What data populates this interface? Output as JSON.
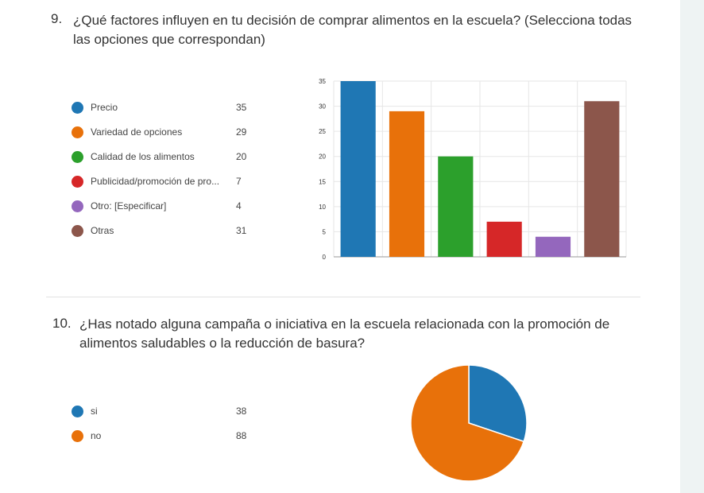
{
  "q9": {
    "number": "9.",
    "title": "¿Qué factores influyen en tu decisión de comprar alimentos en la escuela? (Selecciona todas las opciones que correspondan)",
    "legend": [
      {
        "label": "Precio",
        "count": "35",
        "color": "#1f77b4"
      },
      {
        "label": "Variedad de opciones",
        "count": "29",
        "color": "#e8710a"
      },
      {
        "label": "Calidad de los alimentos",
        "count": "20",
        "color": "#2ca02c"
      },
      {
        "label": "Publicidad/promoción de pro...",
        "count": "7",
        "color": "#d62728"
      },
      {
        "label": "Otro: [Especificar]",
        "count": "4",
        "color": "#9467bd"
      },
      {
        "label": "Otras",
        "count": "31",
        "color": "#8c564b"
      }
    ]
  },
  "q10": {
    "number": "10.",
    "title": "¿Has notado alguna campaña o iniciativa en la escuela relacionada con la promoción de alimentos saludables o la reducción de basura?",
    "legend": [
      {
        "label": "si",
        "count": "38",
        "color": "#1f77b4"
      },
      {
        "label": "no",
        "count": "88",
        "color": "#e8710a"
      }
    ]
  },
  "chart_data": [
    {
      "type": "bar",
      "categories": [
        "Precio",
        "Variedad de opciones",
        "Calidad de los alimentos",
        "Publicidad/promoción de pro...",
        "Otro: [Especificar]",
        "Otras"
      ],
      "values": [
        35,
        29,
        20,
        7,
        4,
        31
      ],
      "colors": [
        "#1f77b4",
        "#e8710a",
        "#2ca02c",
        "#d62728",
        "#9467bd",
        "#8c564b"
      ],
      "ylim": [
        0,
        35
      ],
      "yticks": [
        0,
        5,
        10,
        15,
        20,
        25,
        30,
        35
      ],
      "grid": true,
      "legend_placement": "left"
    },
    {
      "type": "pie",
      "categories": [
        "si",
        "no"
      ],
      "values": [
        38,
        88
      ],
      "colors": [
        "#1f77b4",
        "#e8710a"
      ],
      "legend_placement": "left"
    }
  ]
}
